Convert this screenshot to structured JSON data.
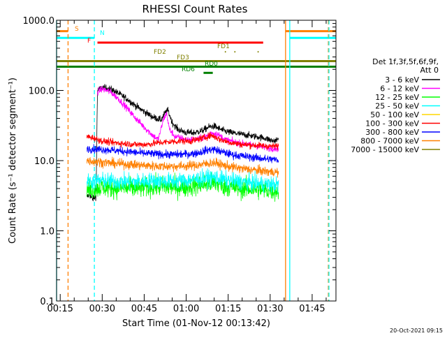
{
  "chart_data": {
    "type": "line",
    "title": "RHESSI Count Rates",
    "xlabel": "Start Time (01-Nov-12 00:13:42)",
    "ylabel": "Count Rate (s⁻¹ detector segment⁻¹)",
    "timestamp": "20-Oct-2021 09:15",
    "x_unit": "minutes after 00:00 UT",
    "xlim": [
      13.7,
      113.5
    ],
    "ylim": [
      0.1,
      1000
    ],
    "yscale": "log",
    "x_ticks": [
      {
        "t": 15,
        "label": "00:15"
      },
      {
        "t": 30,
        "label": "00:30"
      },
      {
        "t": 45,
        "label": "00:45"
      },
      {
        "t": 60,
        "label": "01:00"
      },
      {
        "t": 75,
        "label": "01:15"
      },
      {
        "t": 90,
        "label": "01:30"
      },
      {
        "t": 105,
        "label": "01:45"
      }
    ],
    "y_ticks": [
      {
        "v": 0.1,
        "label": "0.1"
      },
      {
        "v": 1,
        "label": "1.0"
      },
      {
        "v": 10,
        "label": "10.0"
      },
      {
        "v": 100,
        "label": "100.0"
      },
      {
        "v": 1000,
        "label": "1000.0"
      }
    ],
    "legend": {
      "position": "right",
      "header": [
        "Det 1f,3f,5f,6f,9f,",
        "Att 0"
      ],
      "entries": [
        {
          "label": "3 - 6 keV",
          "color": "#000000"
        },
        {
          "label": "6 - 12 keV",
          "color": "#ff00ff"
        },
        {
          "label": "12 - 25 keV",
          "color": "#00ff00"
        },
        {
          "label": "25 - 50 keV",
          "color": "#00ffff"
        },
        {
          "label": "50 - 100 keV",
          "color": "#ffd700"
        },
        {
          "label": "100 - 300 keV",
          "color": "#ff0000"
        },
        {
          "label": "300 - 800 keV",
          "color": "#0000ff"
        },
        {
          "label": "800 - 7000 keV",
          "color": "#ff8000"
        },
        {
          "label": "7000 - 15000 keV",
          "color": "#808000"
        }
      ]
    },
    "series": [
      {
        "name": "3 - 6 keV",
        "color": "#000000",
        "points": [
          [
            24.5,
            3.0
          ],
          [
            25.5,
            3.3
          ],
          [
            26.5,
            2.8
          ],
          [
            27.8,
            3.1
          ],
          [
            28.3,
            100
          ],
          [
            30,
            110
          ],
          [
            33,
            105
          ],
          [
            36,
            90
          ],
          [
            39,
            75
          ],
          [
            42,
            60
          ],
          [
            45,
            50
          ],
          [
            48,
            42
          ],
          [
            51,
            38
          ],
          [
            52.5,
            48
          ],
          [
            53.5,
            52
          ],
          [
            55,
            35
          ],
          [
            57,
            28
          ],
          [
            60,
            25
          ],
          [
            63,
            25
          ],
          [
            66,
            27
          ],
          [
            68,
            30
          ],
          [
            70,
            31
          ],
          [
            73,
            27
          ],
          [
            76,
            25
          ],
          [
            79,
            24
          ],
          [
            82,
            23
          ],
          [
            85,
            22
          ],
          [
            88,
            21
          ],
          [
            91,
            19
          ],
          [
            93,
            20
          ]
        ]
      },
      {
        "name": "6 - 12 keV",
        "color": "#ff00ff",
        "points": [
          [
            28.3,
            95
          ],
          [
            30,
            105
          ],
          [
            33,
            95
          ],
          [
            36,
            75
          ],
          [
            39,
            55
          ],
          [
            42,
            40
          ],
          [
            45,
            30
          ],
          [
            48,
            23
          ],
          [
            50,
            20
          ],
          [
            52,
            40
          ],
          [
            53,
            47
          ],
          [
            54,
            28
          ],
          [
            56,
            22
          ],
          [
            60,
            20
          ],
          [
            64,
            20
          ],
          [
            67,
            22
          ],
          [
            69,
            25
          ],
          [
            71,
            24
          ],
          [
            74,
            20
          ],
          [
            78,
            18
          ],
          [
            82,
            17
          ],
          [
            86,
            16
          ],
          [
            90,
            15
          ],
          [
            93,
            15
          ]
        ]
      },
      {
        "name": "12 - 25 keV",
        "color": "#00ff00",
        "points": [
          [
            24.5,
            3.8
          ],
          [
            30,
            4.2
          ],
          [
            36,
            4.1
          ],
          [
            42,
            4.0
          ],
          [
            48,
            4.3
          ],
          [
            54,
            4.2
          ],
          [
            60,
            4.2
          ],
          [
            66,
            4.6
          ],
          [
            70,
            4.8
          ],
          [
            74,
            4.3
          ],
          [
            80,
            4.0
          ],
          [
            86,
            3.9
          ],
          [
            93,
            3.7
          ]
        ]
      },
      {
        "name": "25 - 50 keV",
        "color": "#00ffff",
        "points": [
          [
            24.5,
            5.0
          ],
          [
            30,
            5.2
          ],
          [
            36,
            5.0
          ],
          [
            42,
            5.0
          ],
          [
            48,
            5.2
          ],
          [
            54,
            5.1
          ],
          [
            60,
            5.2
          ],
          [
            66,
            5.6
          ],
          [
            70,
            5.8
          ],
          [
            74,
            5.3
          ],
          [
            80,
            5.0
          ],
          [
            86,
            4.7
          ],
          [
            93,
            4.5
          ]
        ]
      },
      {
        "name": "100 - 300 keV",
        "color": "#ff0000",
        "points": [
          [
            24.5,
            22
          ],
          [
            27,
            21
          ],
          [
            30,
            19
          ],
          [
            34,
            18
          ],
          [
            38,
            17.5
          ],
          [
            42,
            17
          ],
          [
            46,
            17
          ],
          [
            50,
            18
          ],
          [
            54,
            18.5
          ],
          [
            58,
            19
          ],
          [
            62,
            19
          ],
          [
            66,
            21
          ],
          [
            69,
            23
          ],
          [
            72,
            20
          ],
          [
            76,
            18
          ],
          [
            80,
            17
          ],
          [
            85,
            16.5
          ],
          [
            90,
            16
          ],
          [
            93,
            16
          ]
        ]
      },
      {
        "name": "300 - 800 keV",
        "color": "#0000ff",
        "points": [
          [
            24.5,
            15
          ],
          [
            28,
            14.5
          ],
          [
            32,
            14.3
          ],
          [
            36,
            13.8
          ],
          [
            40,
            13.3
          ],
          [
            44,
            12.8
          ],
          [
            48,
            12.5
          ],
          [
            52,
            12.3
          ],
          [
            56,
            12.2
          ],
          [
            60,
            12.4
          ],
          [
            64,
            12.8
          ],
          [
            67,
            14
          ],
          [
            70,
            14.5
          ],
          [
            73,
            13.2
          ],
          [
            77,
            12
          ],
          [
            81,
            11.5
          ],
          [
            85,
            11
          ],
          [
            89,
            10.5
          ],
          [
            93,
            10.3
          ]
        ]
      },
      {
        "name": "800 - 7000 keV",
        "color": "#ff8000",
        "points": [
          [
            24.5,
            10
          ],
          [
            28,
            9.7
          ],
          [
            32,
            9.3
          ],
          [
            36,
            9.0
          ],
          [
            40,
            8.8
          ],
          [
            44,
            8.6
          ],
          [
            48,
            8.4
          ],
          [
            52,
            8.3
          ],
          [
            56,
            8.3
          ],
          [
            60,
            8.4
          ],
          [
            64,
            8.6
          ],
          [
            67,
            9.0
          ],
          [
            70,
            9.4
          ],
          [
            73,
            8.6
          ],
          [
            77,
            8.0
          ],
          [
            81,
            7.6
          ],
          [
            85,
            7.3
          ],
          [
            89,
            7.0
          ],
          [
            93,
            6.8
          ]
        ]
      }
    ],
    "state_bars": [
      {
        "label": "S",
        "color": "#ff8000",
        "segments": [
          [
            13.7,
            17.8
          ],
          [
            95.5,
            113.5
          ]
        ],
        "y": 700
      },
      {
        "label": "N",
        "color": "#00ffff",
        "segments": [
          [
            13.7,
            27.2
          ],
          [
            97.0,
            113.5
          ]
        ],
        "y": 560
      },
      {
        "label": "F",
        "color": "#ff0000",
        "segments": [
          [
            28.3,
            87.5
          ]
        ],
        "y": 480
      },
      {
        "label": "FD1",
        "color": "#808000",
        "segments": [
          [
            73.8,
            74.2
          ],
          [
            77.2,
            77.6
          ],
          [
            85.5,
            85.9
          ]
        ],
        "y": 355
      },
      {
        "label": "FD2",
        "color": "#808000",
        "segments": [],
        "y": 305
      },
      {
        "label": "FD3",
        "color": "#808000",
        "segments": [
          [
            13.7,
            113.5
          ]
        ],
        "y": 262
      },
      {
        "label": "RD0",
        "color": "#008000",
        "segments": [
          [
            13.7,
            113.5
          ]
        ],
        "y": 218
      },
      {
        "label": "RD6",
        "color": "#008000",
        "segments": [
          [
            66.2,
            69.5
          ]
        ],
        "y": 178
      }
    ],
    "vertical_lines": [
      {
        "t": 13.7,
        "color": "#00ffff",
        "style": "solid"
      },
      {
        "t": 17.8,
        "color": "#ff8000",
        "style": "dashed"
      },
      {
        "t": 27.2,
        "color": "#00ffff",
        "style": "dashed"
      },
      {
        "t": 95.5,
        "color": "#ff8000",
        "style": "solid"
      },
      {
        "t": 97.0,
        "color": "#00ffff",
        "style": "solid"
      },
      {
        "t": 110.8,
        "color": "#ff8000",
        "style": "dashed"
      },
      {
        "t": 111.0,
        "color": "#00ffff",
        "style": "dashed"
      }
    ]
  }
}
